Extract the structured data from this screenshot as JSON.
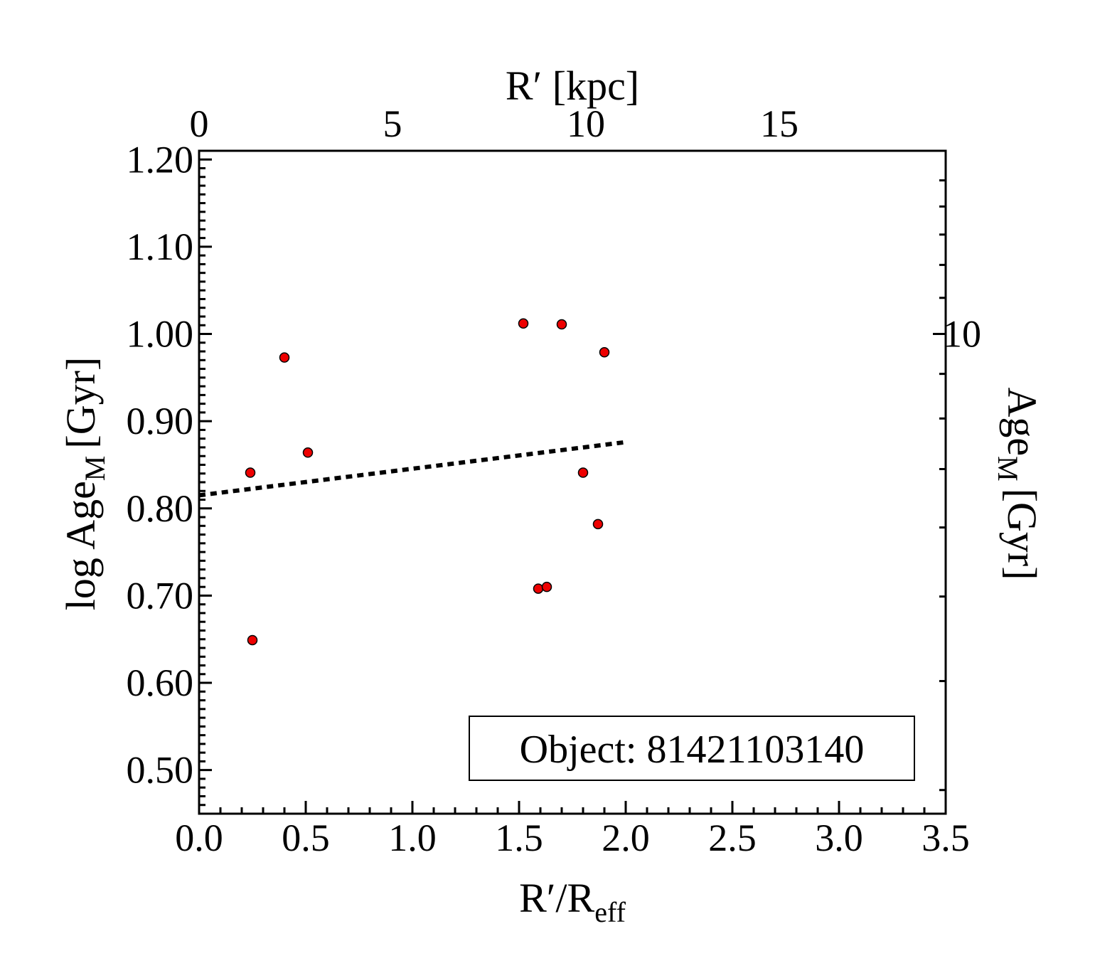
{
  "chart_data": {
    "type": "scatter",
    "xlabel": "R′/R",
    "xlabel_sub": "eff",
    "x2label": "R′ [kpc]",
    "ylabel": "log Age",
    "ylabel_sub": "M",
    "ylabel_unit": "[Gyr]",
    "y2label": "Age",
    "y2label_sub": "M",
    "y2label_unit": "[Gyr]",
    "xlim": [
      0.0,
      3.5
    ],
    "ylim": [
      0.45,
      1.21
    ],
    "x2lim": [
      0,
      19.3
    ],
    "x_ticks": [
      "0.0",
      "0.5",
      "1.0",
      "1.5",
      "2.0",
      "2.5",
      "3.0",
      "3.5"
    ],
    "x_tick_values": [
      0.0,
      0.5,
      1.0,
      1.5,
      2.0,
      2.5,
      3.0,
      3.5
    ],
    "y_ticks": [
      "0.50",
      "0.60",
      "0.70",
      "0.80",
      "0.90",
      "1.00",
      "1.10",
      "1.20"
    ],
    "y_tick_values": [
      0.5,
      0.6,
      0.7,
      0.8,
      0.9,
      1.0,
      1.1,
      1.2
    ],
    "x2_ticks": [
      "0",
      "5",
      "10",
      "15"
    ],
    "x2_tick_values": [
      0,
      5,
      10,
      15
    ],
    "y2_ticks": [
      "10"
    ],
    "y2_tick_values": [
      10
    ],
    "grid": false,
    "points": [
      {
        "x": 0.24,
        "y": 0.841
      },
      {
        "x": 0.25,
        "y": 0.649
      },
      {
        "x": 0.4,
        "y": 0.973
      },
      {
        "x": 0.51,
        "y": 0.864
      },
      {
        "x": 1.52,
        "y": 1.012
      },
      {
        "x": 1.59,
        "y": 0.708
      },
      {
        "x": 1.63,
        "y": 0.71
      },
      {
        "x": 1.7,
        "y": 1.011
      },
      {
        "x": 1.8,
        "y": 0.841
      },
      {
        "x": 1.87,
        "y": 0.782
      },
      {
        "x": 1.9,
        "y": 0.979
      }
    ],
    "fit_line": {
      "x": [
        0.0,
        2.0
      ],
      "y": [
        0.815,
        0.876
      ],
      "style": "dotted"
    },
    "annotation": "Object: 81421103140",
    "annotation_placement": "bottom-right",
    "point_color": "#ee0000",
    "point_edge": "#000000",
    "line_color": "#000000"
  }
}
